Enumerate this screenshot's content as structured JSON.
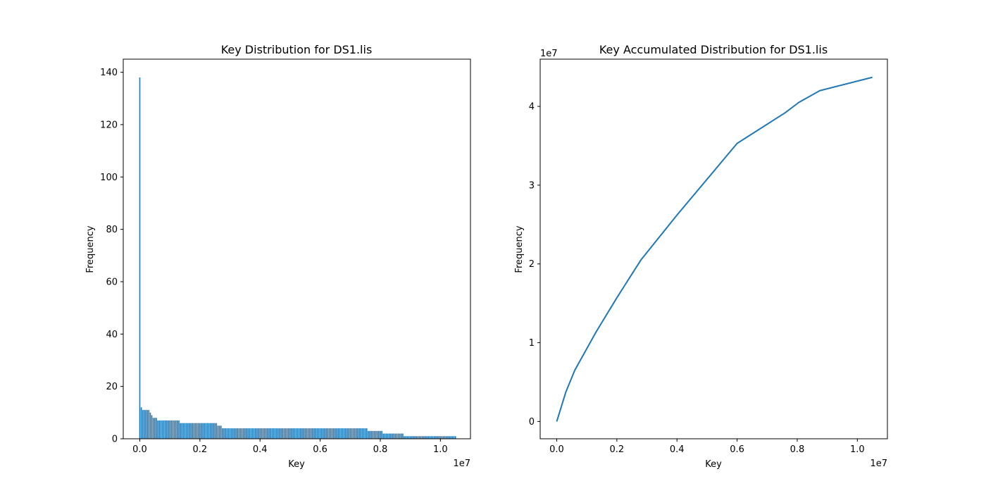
{
  "chart_data": [
    {
      "type": "bar",
      "title": "Key Distribution for DS1.lis",
      "xlabel": "Key",
      "ylabel": "Frequency",
      "x_scale_label": "1e7",
      "xlim": [
        -550000,
        11000000
      ],
      "ylim": [
        0,
        145
      ],
      "xticks": [
        0,
        2000000,
        4000000,
        6000000,
        8000000,
        10000000
      ],
      "xtick_labels": [
        "0.0",
        "0.2",
        "0.4",
        "0.6",
        "0.8",
        "1.0"
      ],
      "yticks": [
        0,
        20,
        40,
        60,
        80,
        100,
        120,
        140
      ],
      "ytick_labels": [
        "0",
        "20",
        "40",
        "60",
        "80",
        "100",
        "120",
        "140"
      ],
      "bar_color": "#1f77b4",
      "grid": false,
      "segments": [
        {
          "from": 0,
          "to": 0,
          "value": 138
        },
        {
          "from": 50000,
          "to": 50000,
          "value": 12
        },
        {
          "from": 100000,
          "to": 300000,
          "value": 11
        },
        {
          "from": 350000,
          "to": 350000,
          "value": 10
        },
        {
          "from": 400000,
          "to": 400000,
          "value": 9
        },
        {
          "from": 450000,
          "to": 550000,
          "value": 8
        },
        {
          "from": 600000,
          "to": 1300000,
          "value": 7
        },
        {
          "from": 1350000,
          "to": 2550000,
          "value": 6
        },
        {
          "from": 2600000,
          "to": 2700000,
          "value": 5
        },
        {
          "from": 2750000,
          "to": 7550000,
          "value": 4
        },
        {
          "from": 7600000,
          "to": 8050000,
          "value": 3
        },
        {
          "from": 8100000,
          "to": 8750000,
          "value": 2
        },
        {
          "from": 8800000,
          "to": 10500000,
          "value": 1
        }
      ],
      "bar_spacing": 50000
    },
    {
      "type": "line",
      "title": "Key Accumulated Distribution for DS1.lis",
      "xlabel": "Key",
      "ylabel": "Frequency",
      "x_scale_label": "1e7",
      "y_scale_label": "1e7",
      "xlim": [
        -550000,
        11000000
      ],
      "ylim": [
        -2200000,
        46000000
      ],
      "xticks": [
        0,
        2000000,
        4000000,
        6000000,
        8000000,
        10000000
      ],
      "xtick_labels": [
        "0.0",
        "0.2",
        "0.4",
        "0.6",
        "0.8",
        "1.0"
      ],
      "yticks": [
        0,
        10000000,
        20000000,
        30000000,
        40000000
      ],
      "ytick_labels": [
        "0",
        "1",
        "2",
        "3",
        "4"
      ],
      "line_color": "#1f77b4",
      "grid": false,
      "x": [
        0,
        50000,
        300000,
        600000,
        1300000,
        2000000,
        2600000,
        2800000,
        4000000,
        6000000,
        7600000,
        8050000,
        8750000,
        10500000
      ],
      "y": [
        0,
        600000,
        3700000,
        6500000,
        11300000,
        15700000,
        19300000,
        20500000,
        26200000,
        35300000,
        39200000,
        40500000,
        42000000,
        43700000
      ]
    }
  ]
}
